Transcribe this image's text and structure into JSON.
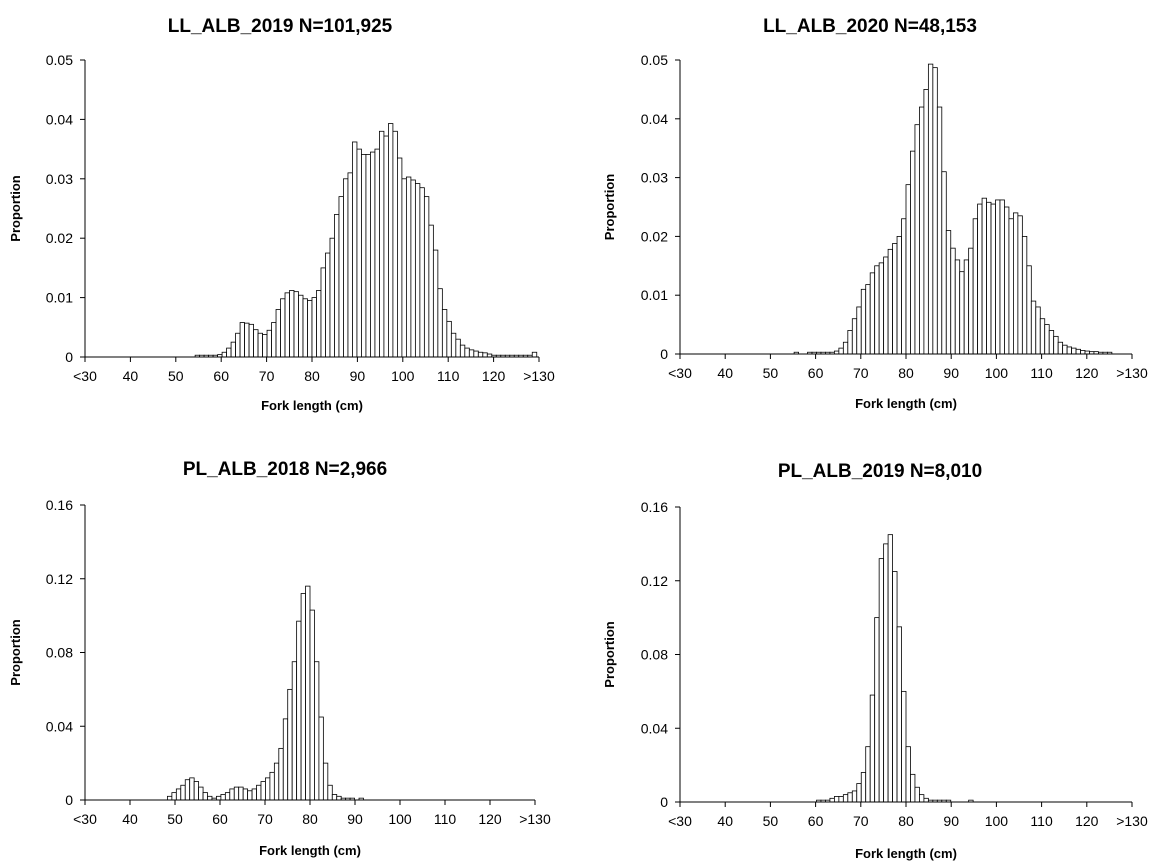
{
  "chart_data": [
    {
      "type": "bar",
      "title": "LL_ALB_2019  N=101,925",
      "xlabel": "Fork length (cm)",
      "ylabel": "Proportion",
      "x_tick_labels": [
        "<30",
        "40",
        "50",
        "60",
        "70",
        "80",
        "90",
        "100",
        "110",
        "120",
        ">130"
      ],
      "y_tick_labels": [
        "0",
        "0.01",
        "0.02",
        "0.03",
        "0.04",
        "0.05"
      ],
      "ylim": [
        0,
        0.05
      ],
      "xlim": [
        30,
        131
      ],
      "x": [
        55,
        56,
        57,
        58,
        59,
        60,
        61,
        62,
        63,
        64,
        65,
        66,
        67,
        68,
        69,
        70,
        71,
        72,
        73,
        74,
        75,
        76,
        77,
        78,
        79,
        80,
        81,
        82,
        83,
        84,
        85,
        86,
        87,
        88,
        89,
        90,
        91,
        92,
        93,
        94,
        95,
        96,
        97,
        98,
        99,
        100,
        101,
        102,
        103,
        104,
        105,
        106,
        107,
        108,
        109,
        110,
        111,
        112,
        113,
        114,
        115,
        116,
        117,
        118,
        119,
        120,
        121,
        122,
        123,
        124,
        125,
        126,
        127,
        128,
        129,
        130
      ],
      "values": [
        0.0003,
        0.0003,
        0.0003,
        0.0003,
        0.0003,
        0.0004,
        0.0008,
        0.0015,
        0.0025,
        0.004,
        0.0058,
        0.0057,
        0.0055,
        0.0046,
        0.004,
        0.0038,
        0.0045,
        0.0058,
        0.008,
        0.0098,
        0.0108,
        0.0112,
        0.011,
        0.0104,
        0.0098,
        0.0095,
        0.01,
        0.0112,
        0.015,
        0.0175,
        0.02,
        0.024,
        0.027,
        0.03,
        0.031,
        0.0362,
        0.035,
        0.0341,
        0.0341,
        0.0345,
        0.035,
        0.038,
        0.0372,
        0.0393,
        0.038,
        0.0335,
        0.03,
        0.0303,
        0.0298,
        0.0292,
        0.0285,
        0.027,
        0.0222,
        0.018,
        0.0115,
        0.008,
        0.006,
        0.004,
        0.003,
        0.002,
        0.0015,
        0.0012,
        0.001,
        0.0008,
        0.0007,
        0.0005,
        0.0003,
        0.0003,
        0.0003,
        0.0003,
        0.0003,
        0.0003,
        0.0003,
        0.0003,
        0.0003,
        0.0008
      ]
    },
    {
      "type": "bar",
      "title": "LL_ALB_2020  N=48,153",
      "xlabel": "Fork length (cm)",
      "ylabel": "Proportion",
      "x_tick_labels": [
        "<30",
        "40",
        "50",
        "60",
        "70",
        "80",
        "90",
        "100",
        "110",
        "120",
        ">130"
      ],
      "y_tick_labels": [
        "0",
        "0.01",
        "0.02",
        "0.03",
        "0.04",
        "0.05"
      ],
      "ylim": [
        0,
        0.05
      ],
      "xlim": [
        30,
        131
      ],
      "x": [
        56,
        59,
        60,
        61,
        62,
        63,
        64,
        65,
        66,
        67,
        68,
        69,
        70,
        71,
        72,
        73,
        74,
        75,
        76,
        77,
        78,
        79,
        80,
        81,
        82,
        83,
        84,
        85,
        86,
        87,
        88,
        89,
        90,
        91,
        92,
        93,
        94,
        95,
        96,
        97,
        98,
        99,
        100,
        101,
        102,
        103,
        104,
        105,
        106,
        107,
        108,
        109,
        110,
        111,
        112,
        113,
        114,
        115,
        116,
        117,
        118,
        119,
        120,
        121,
        122,
        123,
        124,
        125,
        126
      ],
      "values": [
        0.0003,
        0.0003,
        0.0003,
        0.0003,
        0.0003,
        0.0003,
        0.0003,
        0.0005,
        0.001,
        0.002,
        0.004,
        0.006,
        0.008,
        0.011,
        0.0118,
        0.0138,
        0.015,
        0.0155,
        0.0165,
        0.0178,
        0.0188,
        0.02,
        0.023,
        0.0288,
        0.0345,
        0.039,
        0.042,
        0.045,
        0.0493,
        0.0487,
        0.042,
        0.031,
        0.021,
        0.018,
        0.016,
        0.014,
        0.016,
        0.018,
        0.023,
        0.0255,
        0.0265,
        0.0258,
        0.0255,
        0.0262,
        0.0262,
        0.025,
        0.023,
        0.024,
        0.0235,
        0.02,
        0.015,
        0.009,
        0.008,
        0.006,
        0.005,
        0.004,
        0.003,
        0.002,
        0.0015,
        0.0012,
        0.001,
        0.0008,
        0.0006,
        0.0005,
        0.0004,
        0.0004,
        0.0003,
        0.0003,
        0.0003
      ]
    },
    {
      "type": "bar",
      "title": "PL_ALB_2018  N=2,966",
      "xlabel": "Fork length (cm)",
      "ylabel": "Proportion",
      "x_tick_labels": [
        "<30",
        "40",
        "50",
        "60",
        "70",
        "80",
        "90",
        "100",
        "110",
        "120",
        ">130"
      ],
      "y_tick_labels": [
        "0",
        "0.04",
        "0.08",
        "0.12",
        "0.16"
      ],
      "ylim": [
        0,
        0.16
      ],
      "xlim": [
        30,
        131
      ],
      "x": [
        49,
        50,
        51,
        52,
        53,
        54,
        55,
        56,
        57,
        58,
        59,
        60,
        61,
        62,
        63,
        64,
        65,
        66,
        67,
        68,
        69,
        70,
        71,
        72,
        73,
        74,
        75,
        76,
        77,
        78,
        79,
        80,
        81,
        82,
        83,
        84,
        85,
        86,
        87,
        88,
        89,
        90,
        92
      ],
      "values": [
        0.002,
        0.004,
        0.006,
        0.008,
        0.011,
        0.012,
        0.01,
        0.007,
        0.004,
        0.002,
        0.001,
        0.002,
        0.003,
        0.004,
        0.006,
        0.007,
        0.007,
        0.006,
        0.005,
        0.006,
        0.008,
        0.01,
        0.012,
        0.015,
        0.02,
        0.028,
        0.044,
        0.06,
        0.075,
        0.097,
        0.112,
        0.116,
        0.103,
        0.075,
        0.045,
        0.02,
        0.008,
        0.003,
        0.002,
        0.001,
        0.001,
        0.001,
        0.001
      ]
    },
    {
      "type": "bar",
      "title": "PL_ALB_2019  N=8,010",
      "xlabel": "Fork length (cm)",
      "ylabel": "Proportion",
      "x_tick_labels": [
        "<30",
        "40",
        "50",
        "60",
        "70",
        "80",
        "90",
        "100",
        "110",
        "120",
        ">130"
      ],
      "y_tick_labels": [
        "0",
        "0.04",
        "0.08",
        "0.12",
        "0.16"
      ],
      "ylim": [
        0,
        0.16
      ],
      "xlim": [
        30,
        131
      ],
      "x": [
        61,
        62,
        63,
        64,
        65,
        66,
        67,
        68,
        69,
        70,
        71,
        72,
        73,
        74,
        75,
        76,
        77,
        78,
        79,
        80,
        81,
        82,
        83,
        84,
        85,
        86,
        87,
        88,
        89,
        90,
        95
      ],
      "values": [
        0.001,
        0.001,
        0.001,
        0.002,
        0.003,
        0.003,
        0.004,
        0.005,
        0.006,
        0.01,
        0.016,
        0.03,
        0.058,
        0.1,
        0.132,
        0.14,
        0.145,
        0.125,
        0.095,
        0.06,
        0.03,
        0.015,
        0.008,
        0.004,
        0.002,
        0.001,
        0.001,
        0.001,
        0.001,
        0.001,
        0.001
      ]
    }
  ]
}
